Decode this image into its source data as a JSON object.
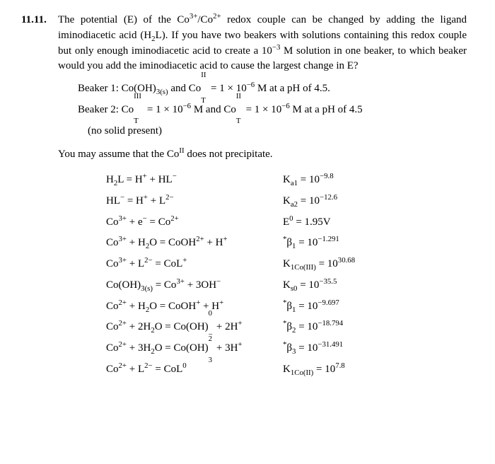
{
  "problem_number": "11.11.",
  "para1": "The potential (E) of the Co³⁺/Co²⁺ redox couple can be changed by adding the ligand iminodiacetic acid (H₂L). If you have two beakers with solutions containing this redox couple but only enough iminodiacetic acid to create a 10⁻³ M solution in one beaker, to which beaker would you add the iminodiacetic acid to cause the largest change in E?",
  "beaker1": "Beaker 1: Co(OH)₃₍ₛ₎ and Coᴵᴵ_T = 1 × 10⁻⁶ M at a pH of 4.5.",
  "beaker2": "Beaker 2: Coᴵᴵᴵ_T = 1 × 10⁻⁶ M and Coᴵᴵ_T = 1 × 10⁻⁶ M at a pH of 4.5",
  "nosolid": "(no solid present)",
  "assume": "You may assume that the Coᴵᴵ does not precipitate.",
  "eq": [
    {
      "l": "H₂L = H⁺ + HL⁻",
      "r": "Kₐ₁ = 10⁻⁹·⁸"
    },
    {
      "l": "HL⁻ = H⁺ + L²⁻",
      "r": "Kₐ₂ = 10⁻¹²·⁶"
    },
    {
      "l": "Co³⁺ + e⁻ = Co²⁺",
      "r": "E⁰ = 1.95V"
    },
    {
      "l": "Co³⁺ + H₂O = CoOH²⁺ + H⁺",
      "r": "*β₁ = 10⁻¹·²⁹¹"
    },
    {
      "l": "Co³⁺ + L²⁻ = CoL⁺",
      "r": "K₁Co(III) = 10³⁰·⁶⁸"
    },
    {
      "l": "Co(OH)₃₍ₛ₎ = Co³⁺ + 3OH⁻",
      "r": "Kₛ₀ = 10⁻³⁵·⁵"
    },
    {
      "l": "Co²⁺ + H₂O = CoOH⁺ + H⁺",
      "r": "*β₁ = 10⁻⁹·⁶⁹⁷"
    },
    {
      "l": "Co²⁺ + 2H₂O = Co(OH)₂⁰ + 2H⁺",
      "r": "*β₂ = 10⁻¹⁸·⁷⁹⁴"
    },
    {
      "l": "Co²⁺ + 3H₂O = Co(OH)₃⁻ + 3H⁺",
      "r": "*β₃ = 10⁻³¹·⁴⁹¹"
    },
    {
      "l": "Co²⁺ + L²⁻ = CoL⁰",
      "r": "K₁Co(II) = 10⁷·⁸"
    }
  ]
}
